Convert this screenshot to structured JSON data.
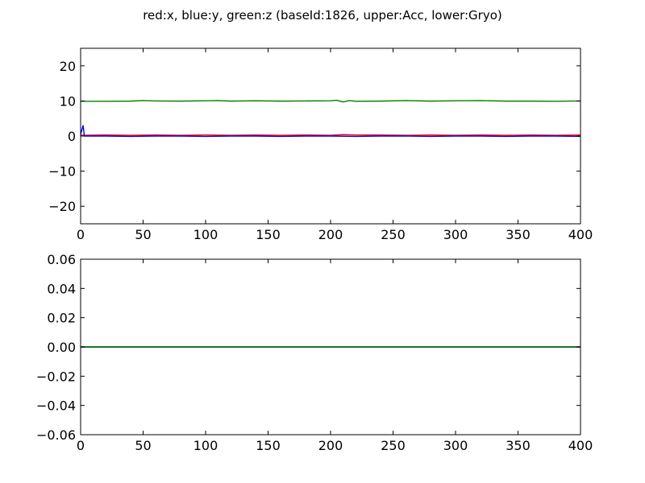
{
  "figure": {
    "title": "red:x, blue:y, green:z (baseId:1826, upper:Acc, lower:Gryo)"
  },
  "chart_data": [
    {
      "type": "line",
      "panel": "upper",
      "title": "",
      "xlabel": "",
      "ylabel": "",
      "xlim": [
        0,
        400
      ],
      "ylim": [
        -25,
        25
      ],
      "grid": false,
      "legend": "none",
      "x_ticks": [
        0,
        50,
        100,
        150,
        200,
        250,
        300,
        350,
        400
      ],
      "x_tick_labels": [
        "0",
        "50",
        "100",
        "150",
        "200",
        "250",
        "300",
        "350",
        "400"
      ],
      "y_ticks": [
        -20,
        -10,
        0,
        10,
        20
      ],
      "y_tick_labels": [
        "−20",
        "−10",
        "0",
        "10",
        "20"
      ],
      "series": [
        {
          "color": "#ff0000",
          "x": [
            0,
            2,
            20,
            40,
            60,
            80,
            100,
            120,
            140,
            160,
            180,
            200,
            210,
            220,
            240,
            260,
            280,
            300,
            320,
            340,
            360,
            380,
            400
          ],
          "y": [
            0.3,
            0.2,
            0.3,
            0.2,
            0.3,
            0.2,
            0.3,
            0.2,
            0.3,
            0.2,
            0.3,
            0.2,
            0.4,
            0.3,
            0.3,
            0.2,
            0.3,
            0.2,
            0.3,
            0.2,
            0.3,
            0.2,
            0.3
          ]
        },
        {
          "color": "#0000ff",
          "x": [
            0,
            2,
            3,
            20,
            40,
            60,
            80,
            100,
            120,
            140,
            160,
            180,
            200,
            220,
            240,
            260,
            280,
            300,
            320,
            340,
            360,
            380,
            400
          ],
          "y": [
            0.5,
            3.0,
            0.0,
            0.0,
            -0.1,
            0.0,
            0.0,
            -0.1,
            0.0,
            0.0,
            -0.1,
            0.0,
            0.0,
            -0.1,
            0.0,
            0.0,
            -0.1,
            0.0,
            0.0,
            -0.1,
            0.0,
            0.0,
            -0.1
          ]
        },
        {
          "color": "#008000",
          "x": [
            0,
            20,
            40,
            50,
            60,
            80,
            100,
            110,
            120,
            140,
            160,
            180,
            200,
            205,
            210,
            215,
            220,
            240,
            260,
            280,
            300,
            320,
            340,
            360,
            380,
            400
          ],
          "y": [
            9.9,
            9.9,
            9.95,
            10.1,
            10.0,
            9.95,
            10.05,
            10.1,
            9.95,
            10.05,
            9.95,
            10.0,
            10.05,
            10.2,
            9.7,
            10.1,
            9.9,
            9.95,
            10.1,
            9.95,
            10.05,
            10.1,
            9.95,
            9.95,
            9.9,
            10.0
          ]
        }
      ]
    },
    {
      "type": "line",
      "panel": "lower",
      "title": "",
      "xlabel": "",
      "ylabel": "",
      "xlim": [
        0,
        400
      ],
      "ylim": [
        -0.06,
        0.06
      ],
      "grid": false,
      "legend": "none",
      "x_ticks": [
        0,
        50,
        100,
        150,
        200,
        250,
        300,
        350,
        400
      ],
      "x_tick_labels": [
        "0",
        "50",
        "100",
        "150",
        "200",
        "250",
        "300",
        "350",
        "400"
      ],
      "y_ticks": [
        -0.06,
        -0.04,
        -0.02,
        0.0,
        0.02,
        0.04,
        0.06
      ],
      "y_tick_labels": [
        "−0.06",
        "−0.04",
        "−0.02",
        "0.00",
        "0.02",
        "0.04",
        "0.06"
      ],
      "series": [
        {
          "color": "#ff0000",
          "x": [
            0,
            400
          ],
          "y": [
            0,
            0
          ]
        },
        {
          "color": "#0000ff",
          "x": [
            0,
            400
          ],
          "y": [
            0,
            0
          ]
        },
        {
          "color": "#008000",
          "x": [
            0,
            400
          ],
          "y": [
            0,
            0
          ]
        }
      ]
    }
  ]
}
